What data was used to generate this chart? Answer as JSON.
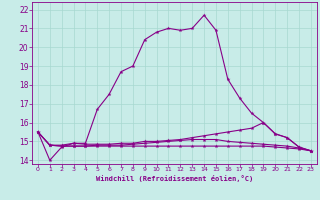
{
  "xlabel": "Windchill (Refroidissement éolien,°C)",
  "bg_color": "#c8ece8",
  "line_color": "#880088",
  "ylim": [
    13.8,
    22.4
  ],
  "xlim": [
    -0.5,
    23.5
  ],
  "yticks": [
    14,
    15,
    16,
    17,
    18,
    19,
    20,
    21,
    22
  ],
  "xticks": [
    0,
    1,
    2,
    3,
    4,
    5,
    6,
    7,
    8,
    9,
    10,
    11,
    12,
    13,
    14,
    15,
    16,
    17,
    18,
    19,
    20,
    21,
    22,
    23
  ],
  "curve1_x": [
    0,
    1,
    2,
    3,
    4,
    5,
    6,
    7,
    8,
    9,
    10,
    11,
    12,
    13,
    14,
    15,
    16,
    17,
    18,
    19,
    20,
    21,
    22,
    23
  ],
  "curve1_y": [
    15.5,
    14.0,
    14.7,
    14.9,
    14.9,
    16.7,
    17.5,
    18.7,
    19.0,
    20.4,
    20.8,
    21.0,
    20.9,
    21.0,
    21.7,
    20.9,
    18.3,
    17.3,
    16.5,
    16.0,
    15.4,
    15.2,
    14.7,
    14.5
  ],
  "curve2_x": [
    0,
    1,
    2,
    3,
    4,
    5,
    6,
    7,
    8,
    9,
    10,
    11,
    12,
    13,
    14,
    15,
    16,
    17,
    18,
    19,
    20,
    21,
    22,
    23
  ],
  "curve2_y": [
    15.5,
    14.8,
    14.8,
    14.9,
    14.85,
    14.85,
    14.85,
    14.9,
    14.9,
    15.0,
    15.0,
    15.05,
    15.1,
    15.2,
    15.3,
    15.4,
    15.5,
    15.6,
    15.7,
    16.0,
    15.4,
    15.2,
    14.7,
    14.5
  ],
  "curve3_x": [
    0,
    1,
    2,
    3,
    4,
    5,
    6,
    7,
    8,
    9,
    10,
    11,
    12,
    13,
    14,
    15,
    16,
    17,
    18,
    19,
    20,
    21,
    22,
    23
  ],
  "curve3_y": [
    15.5,
    14.8,
    14.75,
    14.75,
    14.75,
    14.75,
    14.75,
    14.75,
    14.75,
    14.75,
    14.75,
    14.75,
    14.75,
    14.75,
    14.75,
    14.75,
    14.75,
    14.75,
    14.75,
    14.75,
    14.7,
    14.65,
    14.6,
    14.5
  ],
  "curve4_x": [
    0,
    1,
    2,
    3,
    4,
    5,
    6,
    7,
    8,
    9,
    10,
    11,
    12,
    13,
    14,
    15,
    16,
    17,
    18,
    19,
    20,
    21,
    22,
    23
  ],
  "curve4_y": [
    15.5,
    14.8,
    14.75,
    14.75,
    14.75,
    14.8,
    14.8,
    14.8,
    14.85,
    14.9,
    14.95,
    15.0,
    15.05,
    15.1,
    15.1,
    15.1,
    15.0,
    14.95,
    14.9,
    14.85,
    14.8,
    14.75,
    14.65,
    14.5
  ]
}
